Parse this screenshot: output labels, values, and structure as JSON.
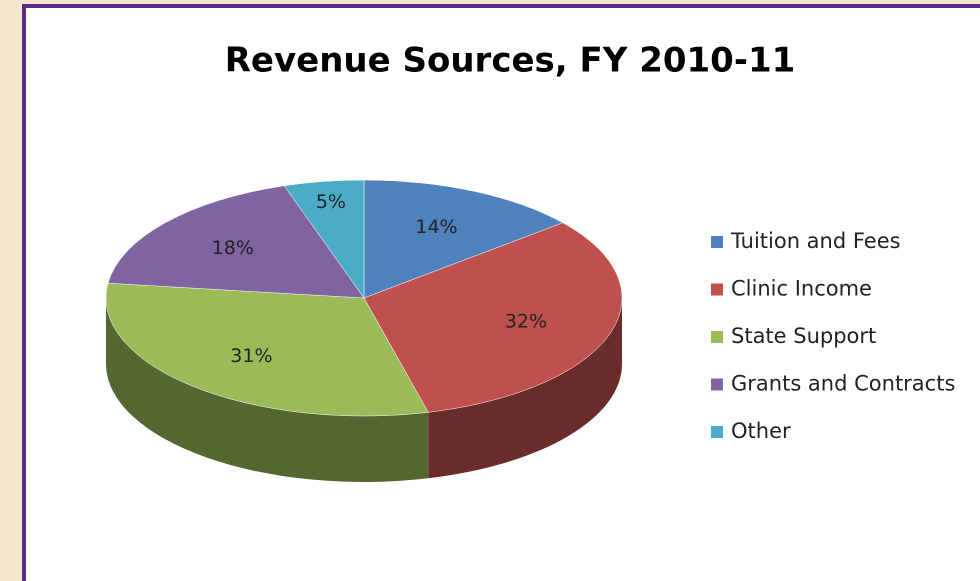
{
  "chart_data": {
    "type": "pie",
    "title": "Revenue Sources, FY 2010-11",
    "categories": [
      "Tuition and Fees",
      "Clinic Income",
      "State Support",
      "Grants and Contracts",
      "Other"
    ],
    "values": [
      14,
      32,
      31,
      18,
      5
    ],
    "value_labels": [
      "14%",
      "32%",
      "31%",
      "18%",
      "5%"
    ],
    "colors": [
      "#4f81bd",
      "#c0504d",
      "#9bbb59",
      "#8064a2",
      "#4bacc6"
    ],
    "legend": "right"
  }
}
